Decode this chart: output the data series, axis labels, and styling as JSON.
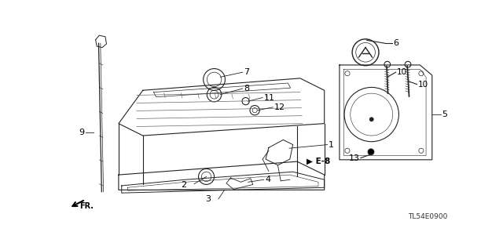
{
  "bg_color": "#ffffff",
  "diagram_code": "TL54E0900",
  "line_color": "#222222"
}
